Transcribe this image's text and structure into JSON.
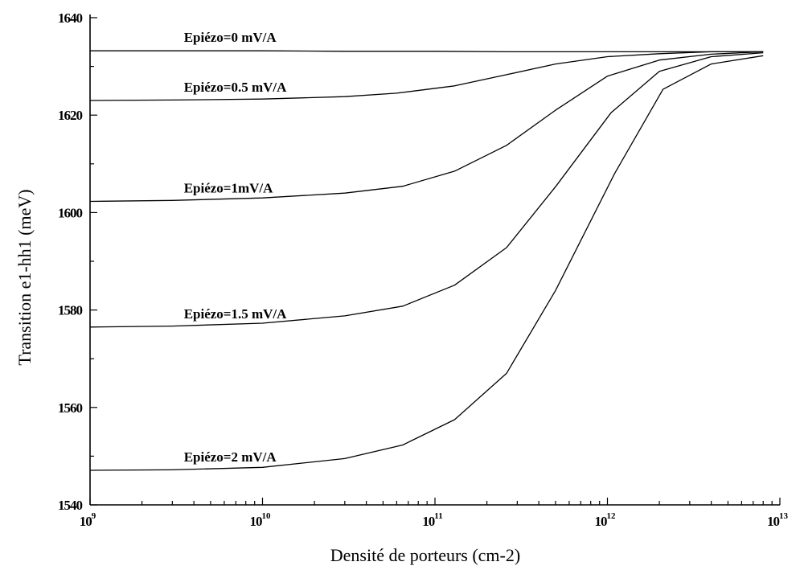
{
  "chart_data": {
    "type": "line",
    "title": "",
    "xlabel": "Densité de porteurs  (cm-2)",
    "ylabel": "Transition e1-hh1  (meV)",
    "xscale": "log",
    "xlim": [
      1000000000.0,
      10000000000000.0
    ],
    "ylim": [
      1540,
      1640
    ],
    "x_ticks": [
      {
        "base": "10",
        "exp": "9"
      },
      {
        "base": "10",
        "exp": "10"
      },
      {
        "base": "10",
        "exp": "11"
      },
      {
        "base": "10",
        "exp": "12"
      },
      {
        "base": "10",
        "exp": "13"
      }
    ],
    "y_ticks": [
      "1640",
      "1620",
      "1600",
      "1580",
      "1560",
      "1540"
    ],
    "grid": false,
    "series": [
      {
        "name": "Epiézo=0 mV/A",
        "x": [
          1000000000.0,
          3000000000.0,
          10000000000.0,
          30000000000.0,
          100000000000.0,
          300000000000.0,
          1000000000000.0,
          3000000000000.0,
          8000000000000.0
        ],
        "values": [
          1633.2,
          1633.2,
          1633.2,
          1633.1,
          1633.1,
          1633.0,
          1633.0,
          1633.0,
          1633.0
        ]
      },
      {
        "name": "Epiézo=0.5 mV/A",
        "x": [
          1000000000.0,
          3000000000.0,
          10000000000.0,
          30000000000.0,
          60000000000.0,
          130000000000.0,
          260000000000.0,
          500000000000.0,
          1000000000000.0,
          2000000000000.0,
          4000000000000.0,
          8000000000000.0
        ],
        "values": [
          1623.0,
          1623.1,
          1623.3,
          1623.8,
          1624.5,
          1626.0,
          1628.3,
          1630.5,
          1632.0,
          1632.6,
          1633.0,
          1633.0
        ]
      },
      {
        "name": "Epiézo=1mV/A",
        "x": [
          1000000000.0,
          3000000000.0,
          10000000000.0,
          30000000000.0,
          65000000000.0,
          130000000000.0,
          260000000000.0,
          500000000000.0,
          1000000000000.0,
          2000000000000.0,
          4000000000000.0,
          8000000000000.0
        ],
        "values": [
          1602.3,
          1602.5,
          1603.0,
          1604.0,
          1605.4,
          1608.5,
          1613.8,
          1621.0,
          1628.0,
          1631.3,
          1632.5,
          1633.0
        ]
      },
      {
        "name": "Epiézo=1.5 mV/A",
        "x": [
          1000000000.0,
          3000000000.0,
          10000000000.0,
          30000000000.0,
          65000000000.0,
          130000000000.0,
          260000000000.0,
          500000000000.0,
          1050000000000.0,
          2000000000000.0,
          4000000000000.0,
          8000000000000.0
        ],
        "values": [
          1576.5,
          1576.7,
          1577.3,
          1578.8,
          1580.8,
          1585.1,
          1592.8,
          1605.3,
          1620.5,
          1629.0,
          1632.0,
          1632.8
        ]
      },
      {
        "name": "Epiézo=2 mV/A",
        "x": [
          1000000000.0,
          3000000000.0,
          10000000000.0,
          30000000000.0,
          65000000000.0,
          130000000000.0,
          260000000000.0,
          500000000000.0,
          1100000000000.0,
          2100000000000.0,
          4000000000000.0,
          8000000000000.0
        ],
        "values": [
          1547.1,
          1547.2,
          1547.7,
          1549.5,
          1552.3,
          1557.5,
          1567.0,
          1584.0,
          1608.0,
          1625.3,
          1630.5,
          1632.2
        ]
      }
    ]
  }
}
